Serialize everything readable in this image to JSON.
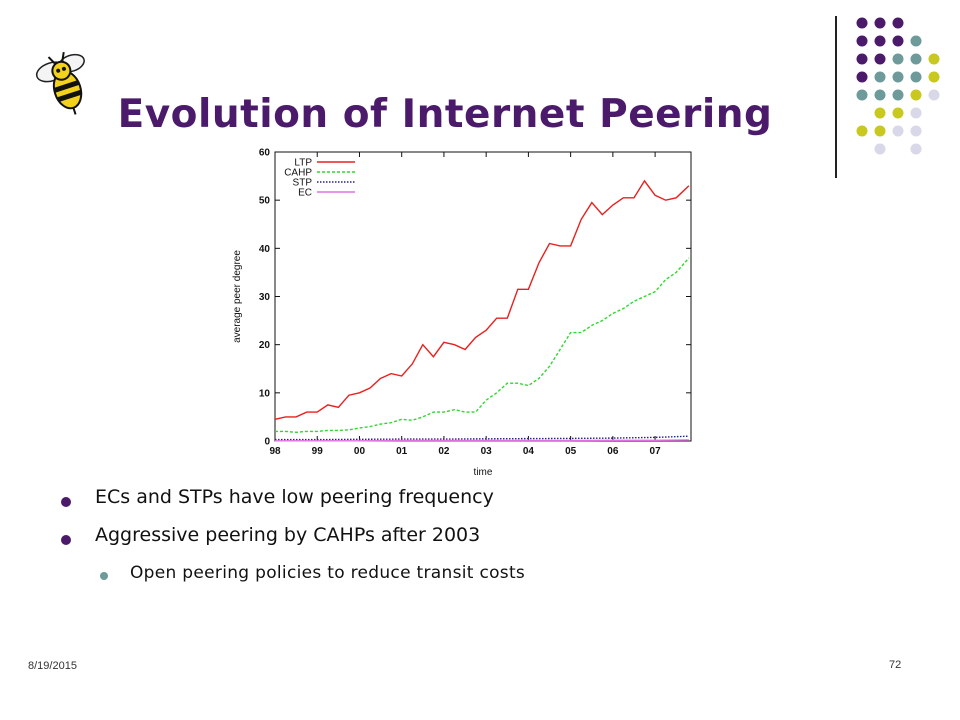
{
  "slide": {
    "title": "Evolution of Internet Peering",
    "date": "8/19/2015",
    "page_number": "72",
    "logo_icon": "yellow-jacket-bee-icon",
    "bullets": [
      {
        "level": 1,
        "text": "ECs and STPs have low peering frequency"
      },
      {
        "level": 1,
        "text": "Aggressive peering by CAHPs after 2003"
      },
      {
        "level": 2,
        "text": "Open peering policies to reduce transit costs"
      }
    ],
    "colors": {
      "title": "#4b1a6a",
      "dot_purple": "#4b1a6a",
      "dot_teal": "#6e9a9a",
      "dot_olive": "#c8c81e",
      "dot_lavender": "#d8d8e8"
    }
  },
  "chart_data": {
    "type": "line",
    "xlabel": "time",
    "ylabel": "average peer degree",
    "xlim": [
      1998,
      2007.85
    ],
    "ylim": [
      0,
      60
    ],
    "yticks": [
      "0",
      "10",
      "20",
      "30",
      "40",
      "50",
      "60"
    ],
    "xticks": [
      "98",
      "99",
      "00",
      "01",
      "02",
      "03",
      "04",
      "05",
      "06",
      "07"
    ],
    "xtick_values": [
      1998,
      1999,
      2000,
      2001,
      2002,
      2003,
      2004,
      2005,
      2006,
      2007
    ],
    "grid": false,
    "legend_position": "top-left",
    "series": [
      {
        "name": "LTP",
        "color": "#e8201e",
        "dash": "",
        "x": [
          1998.0,
          1998.25,
          1998.5,
          1998.75,
          1999.0,
          1999.25,
          1999.5,
          1999.75,
          2000.0,
          2000.25,
          2000.5,
          2000.75,
          2001.0,
          2001.25,
          2001.5,
          2001.75,
          2002.0,
          2002.25,
          2002.5,
          2002.75,
          2003.0,
          2003.25,
          2003.5,
          2003.75,
          2004.0,
          2004.25,
          2004.5,
          2004.75,
          2005.0,
          2005.25,
          2005.5,
          2005.75,
          2006.0,
          2006.25,
          2006.5,
          2006.75,
          2007.0,
          2007.25,
          2007.5,
          2007.8
        ],
        "y": [
          4.5,
          5,
          5,
          6,
          6,
          7.5,
          7,
          9.5,
          10,
          11,
          13,
          14,
          13.5,
          16,
          20,
          17.5,
          20.5,
          20,
          19,
          21.5,
          23,
          25.5,
          25.5,
          31.5,
          31.5,
          37,
          41,
          40.5,
          40.5,
          46,
          49.5,
          47,
          49,
          50.5,
          50.5,
          54,
          51,
          50,
          50.5,
          53
        ]
      },
      {
        "name": "CAHP",
        "color": "#2ed82e",
        "dash": "3,2",
        "x": [
          1998.0,
          1998.25,
          1998.5,
          1998.75,
          1999.0,
          1999.25,
          1999.5,
          1999.75,
          2000.0,
          2000.25,
          2000.5,
          2000.75,
          2001.0,
          2001.25,
          2001.5,
          2001.75,
          2002.0,
          2002.25,
          2002.5,
          2002.75,
          2003.0,
          2003.25,
          2003.5,
          2003.75,
          2004.0,
          2004.25,
          2004.5,
          2004.75,
          2005.0,
          2005.25,
          2005.5,
          2005.75,
          2006.0,
          2006.25,
          2006.5,
          2006.75,
          2007.0,
          2007.25,
          2007.5,
          2007.8
        ],
        "y": [
          2,
          2,
          1.8,
          2,
          2,
          2.2,
          2.2,
          2.3,
          2.7,
          3,
          3.5,
          3.8,
          4.5,
          4.3,
          5,
          6,
          6,
          6.5,
          6,
          6,
          8.5,
          10,
          12,
          12,
          11.5,
          13,
          15.5,
          19,
          22.5,
          22.5,
          24,
          25,
          26.5,
          27.5,
          29,
          30,
          31,
          33.5,
          35,
          38
        ]
      },
      {
        "name": "STP",
        "color": "#23238c",
        "dash": "1.5,1.5",
        "x": [
          1998.0,
          1999.0,
          2000.0,
          2001.0,
          2002.0,
          2003.0,
          2004.0,
          2005.0,
          2006.0,
          2007.0,
          2007.8
        ],
        "y": [
          0.3,
          0.3,
          0.35,
          0.4,
          0.4,
          0.45,
          0.5,
          0.55,
          0.6,
          0.75,
          1.0
        ]
      },
      {
        "name": "EC",
        "color": "#e070e0",
        "dash": "",
        "x": [
          1998.0,
          1999.0,
          2000.0,
          2001.0,
          2002.0,
          2003.0,
          2004.0,
          2005.0,
          2006.0,
          2007.0,
          2007.8
        ],
        "y": [
          0.05,
          0.05,
          0.05,
          0.1,
          0.1,
          0.1,
          0.1,
          0.1,
          0.15,
          0.15,
          0.2
        ]
      }
    ]
  }
}
